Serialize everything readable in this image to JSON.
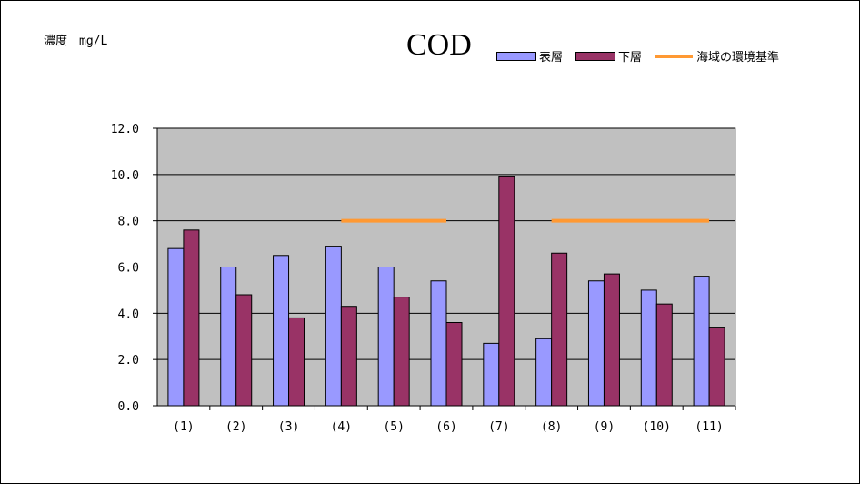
{
  "chart_data": {
    "type": "bar",
    "title": "COD",
    "ylabel": "濃度　mg/L",
    "xlabel": "",
    "categories": [
      "(1)",
      "(2)",
      "(3)",
      "(4)",
      "(5)",
      "(6)",
      "(7)",
      "(8)",
      "(9)",
      "(10)",
      "(11)"
    ],
    "series": [
      {
        "name": "表層",
        "color": "#9999ff",
        "values": [
          6.8,
          6.0,
          6.5,
          6.9,
          6.0,
          5.4,
          2.7,
          2.9,
          5.4,
          5.0,
          5.6
        ]
      },
      {
        "name": "下層",
        "color": "#993366",
        "values": [
          7.6,
          4.8,
          3.8,
          4.3,
          4.7,
          3.6,
          9.9,
          6.6,
          5.7,
          4.4,
          3.4
        ]
      }
    ],
    "reference_line": {
      "name": "海域の環境基準",
      "color": "#ff9933",
      "segments": [
        {
          "from": "(4)",
          "to": "(6)",
          "value": 8.0
        },
        {
          "from": "(8)",
          "to": "(11)",
          "value": 8.0
        }
      ]
    },
    "ylim": [
      0,
      12
    ],
    "yticks": [
      "0.0",
      "2.0",
      "4.0",
      "6.0",
      "8.0",
      "10.0",
      "12.0"
    ],
    "grid": true,
    "legend_position": "top-right",
    "plot_background": "#c0c0c0"
  }
}
